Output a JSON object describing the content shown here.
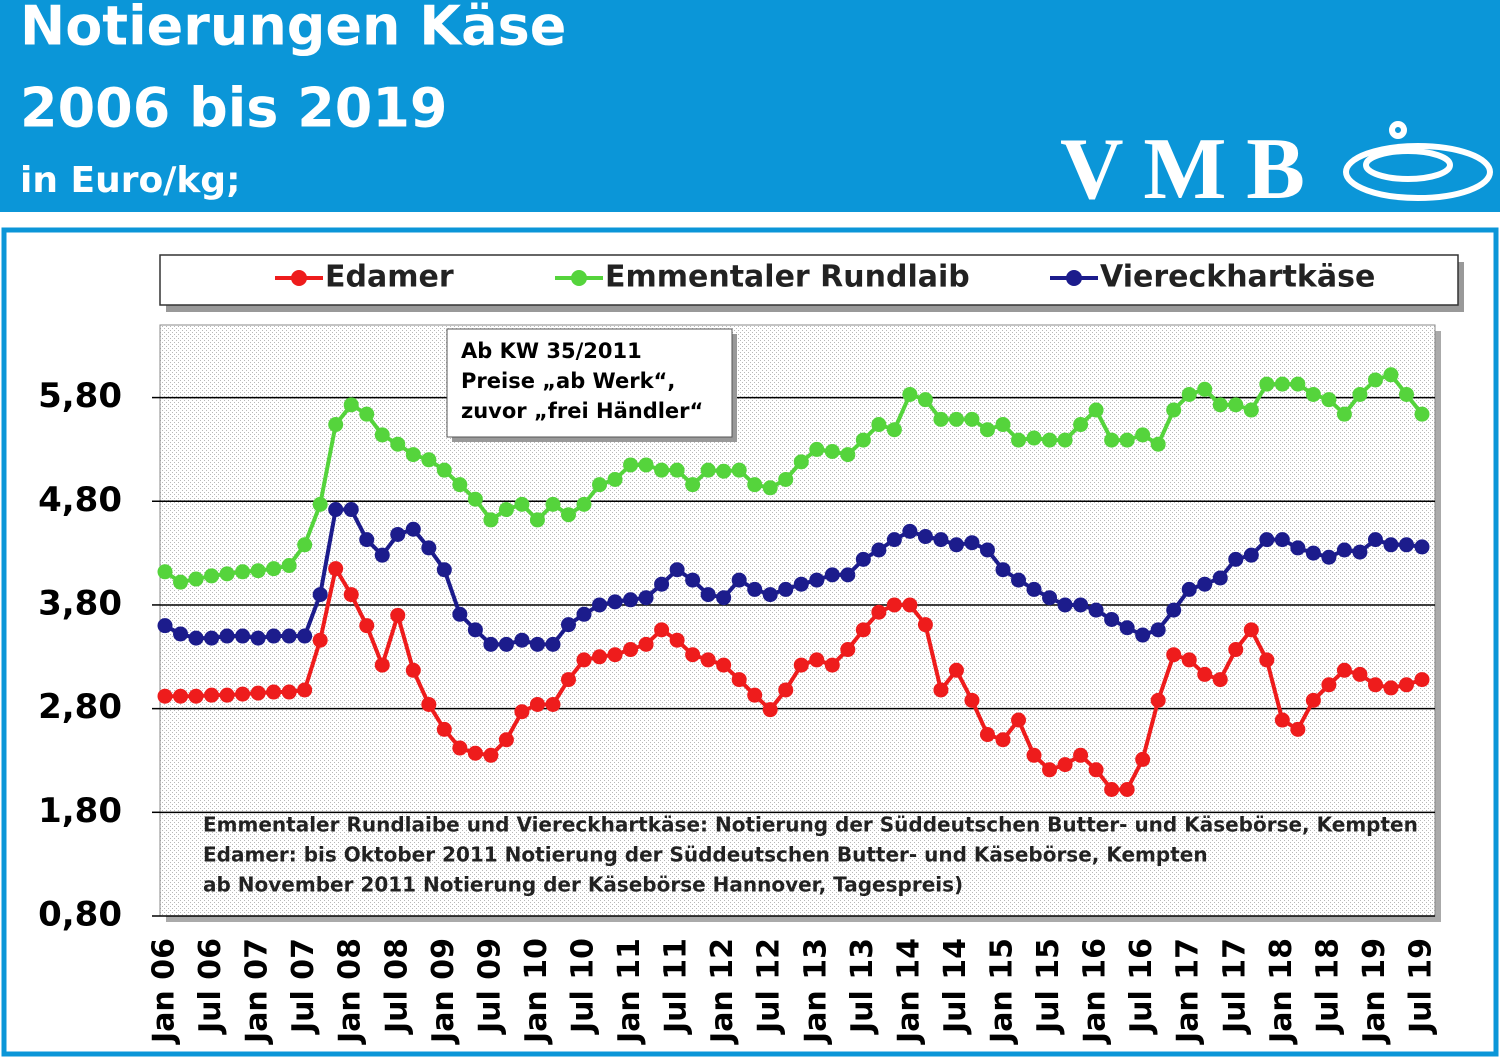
{
  "chart_data": {
    "type": "line",
    "title": "Notierungen  Käse",
    "subtitle": "2006 bis 2019",
    "unit": "in  Euro/kg;",
    "logo": "VMB",
    "annotation": [
      "Ab KW 35/2011",
      "Preise „ab Werk“,",
      "zuvor „frei Händler“"
    ],
    "notes": [
      "Emmentaler Rundlaibe und Viereckhartkäse: Notierung der Süddeutschen Butter-  und Käsebörse, Kempten",
      "Edamer: bis Oktober 2011  Notierung der Süddeutschen Butter- und Käsebörse, Kempten",
      "ab November 2011  Notierung der Käsebörse Hannover, Tagespreis)"
    ],
    "legend": "top",
    "grid": true,
    "ylim": [
      0.8,
      6.5
    ],
    "yticks": [
      {
        "value": 0.8,
        "label": "0,80"
      },
      {
        "value": 1.8,
        "label": "1,80"
      },
      {
        "value": 2.8,
        "label": "2,80"
      },
      {
        "value": 3.8,
        "label": "3,80"
      },
      {
        "value": 4.8,
        "label": "4,80"
      },
      {
        "value": 5.8,
        "label": "5,80"
      }
    ],
    "categories": [
      "Jan 06",
      null,
      null,
      "Jul 06",
      null,
      null,
      "Jan 07",
      null,
      null,
      "Jul 07",
      null,
      null,
      "Jan 08",
      null,
      null,
      "Jul 08",
      null,
      null,
      "Jan 09",
      null,
      null,
      "Jul 09",
      null,
      null,
      "Jan 10",
      null,
      null,
      "Jul 10",
      null,
      null,
      "Jan 11",
      null,
      null,
      "Jul 11",
      null,
      null,
      "Jan 12",
      null,
      null,
      "Jul 12",
      null,
      null,
      "Jan 13",
      null,
      null,
      "Jul 13",
      null,
      null,
      "Jan 14",
      null,
      null,
      "Jul 14",
      null,
      null,
      "Jan 15",
      null,
      null,
      "Jul 15",
      null,
      null,
      "Jan 16",
      null,
      null,
      "Jul 16",
      null,
      null,
      "Jan 17",
      null,
      null,
      "Jul 17",
      null,
      null,
      "Jan 18",
      null,
      null,
      "Jul 18",
      null,
      null,
      "Jan 19",
      null,
      null,
      "Jul 19"
    ],
    "series": [
      {
        "name": "Edamer",
        "color": "#ee1c1c",
        "values": [
          2.92,
          2.92,
          2.92,
          2.93,
          2.93,
          2.94,
          2.95,
          2.96,
          2.96,
          2.98,
          3.46,
          4.15,
          3.9,
          3.6,
          3.22,
          3.7,
          3.17,
          2.84,
          2.6,
          2.42,
          2.37,
          2.35,
          2.5,
          2.77,
          2.84,
          2.84,
          3.08,
          3.27,
          3.3,
          3.32,
          3.37,
          3.42,
          3.56,
          3.46,
          3.32,
          3.27,
          3.22,
          3.08,
          2.93,
          2.79,
          2.98,
          3.22,
          3.27,
          3.22,
          3.37,
          3.56,
          3.73,
          3.8,
          3.8,
          3.61,
          2.98,
          3.17,
          2.88,
          2.55,
          2.5,
          2.69,
          2.35,
          2.21,
          2.26,
          2.35,
          2.21,
          2.02,
          2.02,
          2.31,
          2.88,
          3.32,
          3.27,
          3.13,
          3.08,
          3.37,
          3.56,
          3.27,
          2.69,
          2.6,
          2.88,
          3.03,
          3.17,
          3.13,
          3.03,
          3.0,
          3.03,
          3.08
        ]
      },
      {
        "name": "Emmentaler Rundlaib",
        "color": "#55d43c",
        "values": [
          4.12,
          4.02,
          4.05,
          4.08,
          4.1,
          4.12,
          4.13,
          4.15,
          4.18,
          4.38,
          4.77,
          5.54,
          5.73,
          5.64,
          5.44,
          5.35,
          5.25,
          5.2,
          5.1,
          4.96,
          4.82,
          4.62,
          4.72,
          4.77,
          4.62,
          4.77,
          4.67,
          4.77,
          4.96,
          5.01,
          5.15,
          5.15,
          5.1,
          5.1,
          4.96,
          5.1,
          5.09,
          5.1,
          4.96,
          4.93,
          5.01,
          5.18,
          5.3,
          5.28,
          5.25,
          5.39,
          5.54,
          5.49,
          5.83,
          5.78,
          5.59,
          5.59,
          5.59,
          5.49,
          5.54,
          5.39,
          5.41,
          5.39,
          5.39,
          5.54,
          5.68,
          5.39,
          5.39,
          5.44,
          5.35,
          5.68,
          5.83,
          5.88,
          5.73,
          5.73,
          5.68,
          5.93,
          5.93,
          5.93,
          5.83,
          5.78,
          5.64,
          5.83,
          5.97,
          6.02,
          5.83,
          5.64
        ]
      },
      {
        "name": "Viereckhartkäse",
        "color": "#1c1c8c",
        "values": [
          3.6,
          3.52,
          3.48,
          3.48,
          3.5,
          3.5,
          3.48,
          3.5,
          3.5,
          3.5,
          3.9,
          4.72,
          4.72,
          4.43,
          4.28,
          4.48,
          4.53,
          4.35,
          4.14,
          3.71,
          3.56,
          3.42,
          3.42,
          3.46,
          3.42,
          3.42,
          3.61,
          3.71,
          3.8,
          3.83,
          3.85,
          3.87,
          4.0,
          4.14,
          4.04,
          3.9,
          3.87,
          4.04,
          3.95,
          3.9,
          3.95,
          4.0,
          4.04,
          4.09,
          4.09,
          4.24,
          4.33,
          4.43,
          4.51,
          4.46,
          4.43,
          4.38,
          4.4,
          4.33,
          4.14,
          4.04,
          3.95,
          3.87,
          3.8,
          3.8,
          3.75,
          3.66,
          3.58,
          3.51,
          3.56,
          3.75,
          3.95,
          4.0,
          4.06,
          4.24,
          4.28,
          4.43,
          4.43,
          4.35,
          4.3,
          4.26,
          4.33,
          4.31,
          4.43,
          4.38,
          4.38,
          4.36
        ]
      }
    ]
  }
}
